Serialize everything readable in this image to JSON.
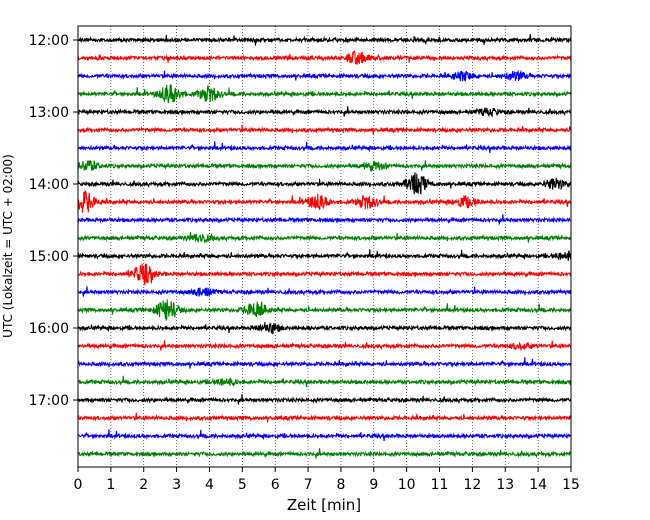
{
  "chart_data": {
    "type": "line",
    "title": "",
    "xlabel": "Zeit  [min]",
    "ylabel": "UTC (Lokalzeit = UTC + 02:00)",
    "xlim": [
      0,
      15
    ],
    "x_ticks": [
      "0",
      "1",
      "2",
      "3",
      "4",
      "5",
      "6",
      "7",
      "8",
      "9",
      "10",
      "11",
      "12",
      "13",
      "14",
      "15"
    ],
    "y_tick_labels": [
      "12:00",
      "13:00",
      "14:00",
      "15:00",
      "16:00",
      "17:00"
    ],
    "grid": "vertical-dotted",
    "line_colors": [
      "#000000",
      "#ff0000",
      "#0000ff",
      "#008000"
    ],
    "series": [
      {
        "start": "12:00",
        "color": "#000000",
        "events": []
      },
      {
        "start": "12:15",
        "color": "#ff0000",
        "events": [
          {
            "t": 8.5,
            "amp": 6
          }
        ]
      },
      {
        "start": "12:30",
        "color": "#0000ff",
        "events": [
          {
            "t": 11.7,
            "amp": 4
          },
          {
            "t": 13.3,
            "amp": 4
          }
        ]
      },
      {
        "start": "12:45",
        "color": "#008000",
        "events": [
          {
            "t": 2.8,
            "amp": 9
          },
          {
            "t": 4.0,
            "amp": 7
          }
        ]
      },
      {
        "start": "13:00",
        "color": "#000000",
        "events": [
          {
            "t": 12.5,
            "amp": 3
          }
        ]
      },
      {
        "start": "13:15",
        "color": "#ff0000",
        "events": []
      },
      {
        "start": "13:30",
        "color": "#0000ff",
        "events": []
      },
      {
        "start": "13:45",
        "color": "#008000",
        "events": [
          {
            "t": 0.3,
            "amp": 5
          },
          {
            "t": 9.0,
            "amp": 4
          }
        ]
      },
      {
        "start": "14:00",
        "color": "#000000",
        "events": [
          {
            "t": 10.3,
            "amp": 10
          },
          {
            "t": 14.5,
            "amp": 5
          }
        ]
      },
      {
        "start": "14:15",
        "color": "#ff0000",
        "events": [
          {
            "t": 0.2,
            "amp": 10
          },
          {
            "t": 7.3,
            "amp": 7
          },
          {
            "t": 8.8,
            "amp": 6
          },
          {
            "t": 11.8,
            "amp": 5
          }
        ]
      },
      {
        "start": "14:30",
        "color": "#0000ff",
        "events": []
      },
      {
        "start": "14:45",
        "color": "#008000",
        "events": [
          {
            "t": 3.7,
            "amp": 4
          }
        ]
      },
      {
        "start": "15:00",
        "color": "#000000",
        "events": [
          {
            "t": 14.9,
            "amp": 4
          }
        ]
      },
      {
        "start": "15:15",
        "color": "#ff0000",
        "events": [
          {
            "t": 2.0,
            "amp": 9
          }
        ]
      },
      {
        "start": "15:30",
        "color": "#0000ff",
        "events": [
          {
            "t": 3.8,
            "amp": 4
          }
        ]
      },
      {
        "start": "15:45",
        "color": "#008000",
        "events": [
          {
            "t": 2.7,
            "amp": 10
          },
          {
            "t": 5.4,
            "amp": 8
          }
        ]
      },
      {
        "start": "16:00",
        "color": "#000000",
        "events": [
          {
            "t": 5.8,
            "amp": 5
          }
        ]
      },
      {
        "start": "16:15",
        "color": "#ff0000",
        "events": [
          {
            "t": 13.5,
            "amp": 3
          }
        ]
      },
      {
        "start": "16:30",
        "color": "#0000ff",
        "events": []
      },
      {
        "start": "16:45",
        "color": "#008000",
        "events": [
          {
            "t": 4.5,
            "amp": 3
          }
        ]
      },
      {
        "start": "17:00",
        "color": "#000000",
        "events": []
      },
      {
        "start": "17:15",
        "color": "#ff0000",
        "events": []
      },
      {
        "start": "17:30",
        "color": "#0000ff",
        "events": []
      },
      {
        "start": "17:45",
        "color": "#008000",
        "events": []
      }
    ]
  }
}
